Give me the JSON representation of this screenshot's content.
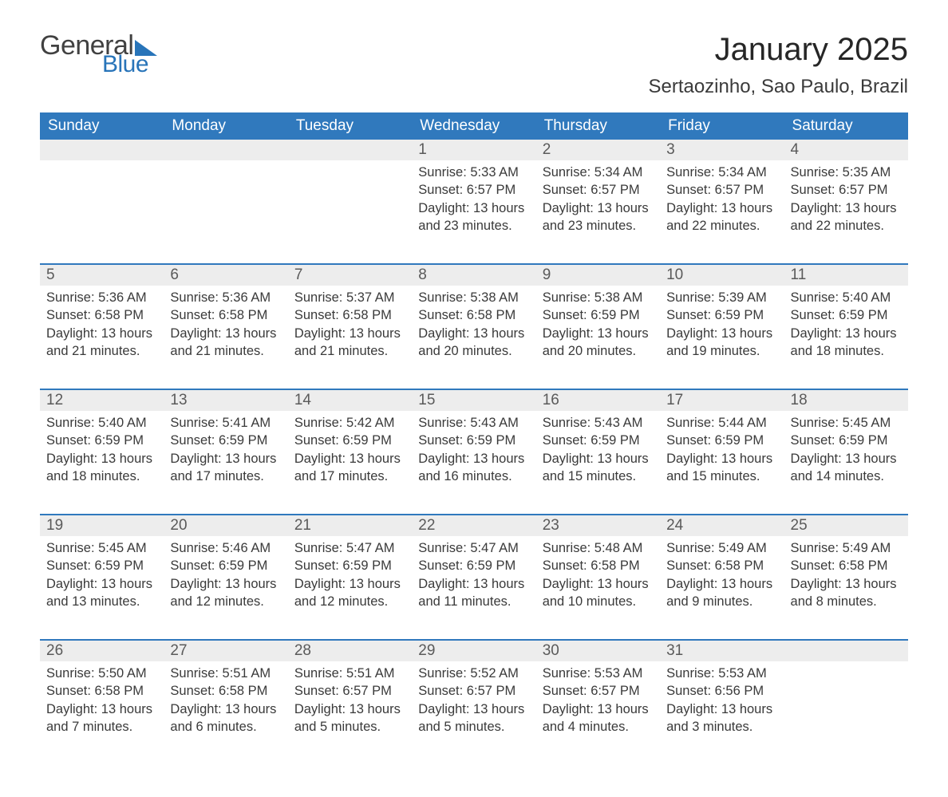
{
  "brand": {
    "word1": "General",
    "word2": "Blue",
    "accent_color": "#2874b9",
    "text_color": "#414141"
  },
  "title": "January 2025",
  "location": "Sertaozinho, Sao Paulo, Brazil",
  "colors": {
    "header_bg": "#3079bd",
    "header_text": "#ffffff",
    "daynum_bg": "#ededed",
    "row_divider": "#3079bd",
    "body_text": "#3a3a3a",
    "page_bg": "#ffffff"
  },
  "day_headers": [
    "Sunday",
    "Monday",
    "Tuesday",
    "Wednesday",
    "Thursday",
    "Friday",
    "Saturday"
  ],
  "weeks": [
    [
      null,
      null,
      null,
      {
        "n": "1",
        "sunrise": "5:33 AM",
        "sunset": "6:57 PM",
        "dl": "13 hours and 23 minutes."
      },
      {
        "n": "2",
        "sunrise": "5:34 AM",
        "sunset": "6:57 PM",
        "dl": "13 hours and 23 minutes."
      },
      {
        "n": "3",
        "sunrise": "5:34 AM",
        "sunset": "6:57 PM",
        "dl": "13 hours and 22 minutes."
      },
      {
        "n": "4",
        "sunrise": "5:35 AM",
        "sunset": "6:57 PM",
        "dl": "13 hours and 22 minutes."
      }
    ],
    [
      {
        "n": "5",
        "sunrise": "5:36 AM",
        "sunset": "6:58 PM",
        "dl": "13 hours and 21 minutes."
      },
      {
        "n": "6",
        "sunrise": "5:36 AM",
        "sunset": "6:58 PM",
        "dl": "13 hours and 21 minutes."
      },
      {
        "n": "7",
        "sunrise": "5:37 AM",
        "sunset": "6:58 PM",
        "dl": "13 hours and 21 minutes."
      },
      {
        "n": "8",
        "sunrise": "5:38 AM",
        "sunset": "6:58 PM",
        "dl": "13 hours and 20 minutes."
      },
      {
        "n": "9",
        "sunrise": "5:38 AM",
        "sunset": "6:59 PM",
        "dl": "13 hours and 20 minutes."
      },
      {
        "n": "10",
        "sunrise": "5:39 AM",
        "sunset": "6:59 PM",
        "dl": "13 hours and 19 minutes."
      },
      {
        "n": "11",
        "sunrise": "5:40 AM",
        "sunset": "6:59 PM",
        "dl": "13 hours and 18 minutes."
      }
    ],
    [
      {
        "n": "12",
        "sunrise": "5:40 AM",
        "sunset": "6:59 PM",
        "dl": "13 hours and 18 minutes."
      },
      {
        "n": "13",
        "sunrise": "5:41 AM",
        "sunset": "6:59 PM",
        "dl": "13 hours and 17 minutes."
      },
      {
        "n": "14",
        "sunrise": "5:42 AM",
        "sunset": "6:59 PM",
        "dl": "13 hours and 17 minutes."
      },
      {
        "n": "15",
        "sunrise": "5:43 AM",
        "sunset": "6:59 PM",
        "dl": "13 hours and 16 minutes."
      },
      {
        "n": "16",
        "sunrise": "5:43 AM",
        "sunset": "6:59 PM",
        "dl": "13 hours and 15 minutes."
      },
      {
        "n": "17",
        "sunrise": "5:44 AM",
        "sunset": "6:59 PM",
        "dl": "13 hours and 15 minutes."
      },
      {
        "n": "18",
        "sunrise": "5:45 AM",
        "sunset": "6:59 PM",
        "dl": "13 hours and 14 minutes."
      }
    ],
    [
      {
        "n": "19",
        "sunrise": "5:45 AM",
        "sunset": "6:59 PM",
        "dl": "13 hours and 13 minutes."
      },
      {
        "n": "20",
        "sunrise": "5:46 AM",
        "sunset": "6:59 PM",
        "dl": "13 hours and 12 minutes."
      },
      {
        "n": "21",
        "sunrise": "5:47 AM",
        "sunset": "6:59 PM",
        "dl": "13 hours and 12 minutes."
      },
      {
        "n": "22",
        "sunrise": "5:47 AM",
        "sunset": "6:59 PM",
        "dl": "13 hours and 11 minutes."
      },
      {
        "n": "23",
        "sunrise": "5:48 AM",
        "sunset": "6:58 PM",
        "dl": "13 hours and 10 minutes."
      },
      {
        "n": "24",
        "sunrise": "5:49 AM",
        "sunset": "6:58 PM",
        "dl": "13 hours and 9 minutes."
      },
      {
        "n": "25",
        "sunrise": "5:49 AM",
        "sunset": "6:58 PM",
        "dl": "13 hours and 8 minutes."
      }
    ],
    [
      {
        "n": "26",
        "sunrise": "5:50 AM",
        "sunset": "6:58 PM",
        "dl": "13 hours and 7 minutes."
      },
      {
        "n": "27",
        "sunrise": "5:51 AM",
        "sunset": "6:58 PM",
        "dl": "13 hours and 6 minutes."
      },
      {
        "n": "28",
        "sunrise": "5:51 AM",
        "sunset": "6:57 PM",
        "dl": "13 hours and 5 minutes."
      },
      {
        "n": "29",
        "sunrise": "5:52 AM",
        "sunset": "6:57 PM",
        "dl": "13 hours and 5 minutes."
      },
      {
        "n": "30",
        "sunrise": "5:53 AM",
        "sunset": "6:57 PM",
        "dl": "13 hours and 4 minutes."
      },
      {
        "n": "31",
        "sunrise": "5:53 AM",
        "sunset": "6:56 PM",
        "dl": "13 hours and 3 minutes."
      },
      null
    ]
  ],
  "labels": {
    "sunrise": "Sunrise: ",
    "sunset": "Sunset: ",
    "daylight": "Daylight: "
  }
}
